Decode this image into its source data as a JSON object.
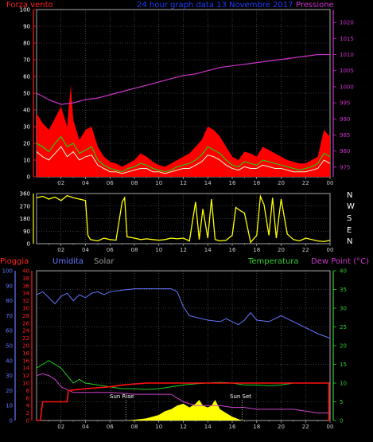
{
  "chart_data": [
    {
      "type": "line",
      "title": "24 hour graph data  13 Novembre 2017",
      "left_axis": {
        "label": "Forza vento",
        "ylim": [
          0,
          100
        ],
        "ticks": [
          "0",
          "10",
          "20",
          "30",
          "40",
          "50",
          "60",
          "70",
          "80",
          "90",
          "100"
        ],
        "color": "#ff2020"
      },
      "right_axis": {
        "label": "Pressione",
        "ylim": [
          972,
          1024
        ],
        "ticks": [
          "975",
          "980",
          "985",
          "990",
          "995",
          "1000",
          "1005",
          "1010",
          "1015",
          "1020"
        ],
        "color": "#cc33cc"
      },
      "x_ticks": [
        "02",
        "04",
        "06",
        "08",
        "10",
        "12",
        "14",
        "16",
        "18",
        "20",
        "22",
        "00"
      ],
      "x_range": [
        0,
        24
      ],
      "grid": true,
      "series": [
        {
          "name": "gust",
          "color": "#ff0000",
          "kind": "fill",
          "x": [
            0.0,
            0.5,
            1.0,
            1.5,
            2.0,
            2.5,
            2.8,
            3.0,
            3.5,
            4.0,
            4.5,
            5.0,
            5.5,
            6.0,
            6.5,
            7.0,
            7.5,
            8.0,
            8.5,
            9.0,
            9.5,
            10.0,
            10.5,
            11.0,
            11.5,
            12.0,
            12.5,
            13.0,
            13.5,
            14.0,
            14.5,
            15.0,
            15.5,
            16.0,
            16.5,
            17.0,
            17.5,
            18.0,
            18.5,
            19.0,
            19.5,
            20.0,
            20.5,
            21.0,
            21.5,
            22.0,
            22.5,
            23.0,
            23.5,
            24.0
          ],
          "values": [
            38,
            32,
            28,
            35,
            42,
            30,
            55,
            34,
            22,
            28,
            30,
            18,
            12,
            9,
            8,
            6,
            8,
            10,
            14,
            12,
            9,
            7,
            6,
            8,
            10,
            12,
            14,
            18,
            22,
            30,
            28,
            24,
            18,
            12,
            10,
            15,
            14,
            12,
            18,
            16,
            14,
            12,
            10,
            9,
            8,
            8,
            10,
            12,
            28,
            24
          ]
        },
        {
          "name": "speed",
          "color": "#00ee00",
          "kind": "line",
          "x": [
            0.0,
            0.5,
            1.0,
            1.5,
            2.0,
            2.5,
            3.0,
            3.5,
            4.0,
            4.5,
            5.0,
            5.5,
            6.0,
            6.5,
            7.0,
            7.5,
            8.0,
            8.5,
            9.0,
            9.5,
            10.0,
            10.5,
            11.0,
            11.5,
            12.0,
            12.5,
            13.0,
            13.5,
            14.0,
            14.5,
            15.0,
            15.5,
            16.0,
            16.5,
            17.0,
            17.5,
            18.0,
            18.5,
            19.0,
            19.5,
            20.0,
            20.5,
            21.0,
            21.5,
            22.0,
            22.5,
            23.0,
            23.5,
            24.0
          ],
          "values": [
            20,
            18,
            15,
            20,
            24,
            18,
            20,
            14,
            16,
            18,
            10,
            7,
            5,
            4,
            3,
            5,
            6,
            8,
            7,
            5,
            4,
            3,
            4,
            6,
            7,
            8,
            10,
            13,
            18,
            16,
            14,
            10,
            7,
            6,
            9,
            8,
            7,
            10,
            9,
            8,
            7,
            6,
            5,
            4,
            5,
            6,
            8,
            14,
            12
          ]
        },
        {
          "name": "average",
          "color": "#d8ffd8",
          "kind": "line",
          "x": [
            0.0,
            0.5,
            1.0,
            1.5,
            2.0,
            2.5,
            3.0,
            3.5,
            4.0,
            4.5,
            5.0,
            5.5,
            6.0,
            6.5,
            7.0,
            7.5,
            8.0,
            8.5,
            9.0,
            9.5,
            10.0,
            10.5,
            11.0,
            11.5,
            12.0,
            12.5,
            13.0,
            13.5,
            14.0,
            14.5,
            15.0,
            15.5,
            16.0,
            16.5,
            17.0,
            17.5,
            18.0,
            18.5,
            19.0,
            19.5,
            20.0,
            20.5,
            21.0,
            21.5,
            22.0,
            22.5,
            23.0,
            23.5,
            24.0
          ],
          "values": [
            15,
            12,
            10,
            14,
            18,
            12,
            15,
            10,
            12,
            13,
            7,
            5,
            3,
            3,
            2,
            3,
            4,
            5,
            5,
            3,
            3,
            2,
            3,
            4,
            5,
            5,
            7,
            9,
            13,
            12,
            10,
            7,
            5,
            4,
            6,
            5,
            5,
            7,
            6,
            5,
            5,
            4,
            3,
            3,
            3,
            4,
            5,
            10,
            8
          ]
        },
        {
          "name": "pressure",
          "color": "#cc33cc",
          "kind": "line",
          "axis": "right",
          "x": [
            0.0,
            1.0,
            2.0,
            3.0,
            4.0,
            5.0,
            6.0,
            7.0,
            8.0,
            9.0,
            10.0,
            11.0,
            12.0,
            13.0,
            14.0,
            15.0,
            16.0,
            17.0,
            18.0,
            19.0,
            20.0,
            21.0,
            22.0,
            23.0,
            24.0
          ],
          "values": [
            998.0,
            996.0,
            994.5,
            995.0,
            996.0,
            996.5,
            997.5,
            998.5,
            999.5,
            1000.5,
            1001.5,
            1002.5,
            1003.5,
            1004.0,
            1005.0,
            1006.0,
            1006.5,
            1007.0,
            1007.5,
            1008.0,
            1008.5,
            1009.0,
            1009.5,
            1010.0,
            1010.0
          ]
        }
      ]
    },
    {
      "type": "line",
      "left_axis": {
        "ylim": [
          0,
          360
        ],
        "ticks": [
          "0",
          "90",
          "180",
          "270",
          "360"
        ]
      },
      "right_labels": [
        "N",
        "W",
        "S",
        "E",
        "N"
      ],
      "x_ticks": [
        "02",
        "04",
        "06",
        "08",
        "10",
        "12",
        "14",
        "16",
        "18",
        "20",
        "22",
        "00"
      ],
      "x_range": [
        0,
        24
      ],
      "series": [
        {
          "name": "direction",
          "color": "#ffff00",
          "x": [
            0.0,
            0.5,
            1.0,
            1.5,
            2.0,
            2.5,
            3.0,
            3.5,
            4.0,
            4.2,
            4.4,
            5.0,
            5.5,
            6.0,
            6.5,
            7.0,
            7.2,
            7.4,
            8.0,
            8.5,
            9.0,
            9.5,
            10.0,
            10.5,
            11.0,
            11.5,
            12.0,
            12.5,
            13.0,
            13.3,
            13.6,
            14.0,
            14.3,
            14.6,
            15.0,
            15.5,
            16.0,
            16.3,
            16.6,
            17.0,
            17.5,
            18.0,
            18.3,
            18.6,
            19.0,
            19.3,
            19.6,
            20.0,
            20.5,
            21.0,
            21.5,
            22.0,
            22.5,
            23.0,
            23.5,
            24.0
          ],
          "values": [
            330,
            340,
            320,
            335,
            310,
            345,
            330,
            320,
            310,
            60,
            30,
            20,
            40,
            30,
            25,
            300,
            330,
            50,
            40,
            30,
            35,
            30,
            25,
            30,
            40,
            35,
            40,
            20,
            300,
            30,
            250,
            40,
            320,
            30,
            20,
            25,
            60,
            260,
            240,
            220,
            10,
            60,
            340,
            280,
            60,
            330,
            40,
            320,
            70,
            30,
            20,
            40,
            30,
            20,
            15,
            25
          ]
        }
      ]
    },
    {
      "type": "line",
      "labels": {
        "rain": "Pioggia",
        "humidity": "Umidita",
        "solar": "Solar",
        "temperature": "Temperatura",
        "dewpoint": "Dew Point (°C)"
      },
      "annotations": [
        "Sun Rise",
        "Sun Set"
      ],
      "sunrise_x": 7.3,
      "sunset_x": 16.8,
      "axis_humidity": {
        "ylim": [
          0,
          100
        ],
        "ticks": [
          "0",
          "10",
          "20",
          "30",
          "40",
          "50",
          "60",
          "70",
          "80",
          "90",
          "100"
        ],
        "color": "#6666ff"
      },
      "axis_rain": {
        "ylim": [
          0,
          40
        ],
        "ticks": [
          "0",
          "2",
          "4",
          "6",
          "8",
          "10",
          "12",
          "14",
          "16",
          "18",
          "20",
          "22",
          "24",
          "26",
          "28",
          "30",
          "32",
          "34",
          "36",
          "38",
          "40"
        ],
        "color": "#ff2020"
      },
      "axis_temperature": {
        "ylim": [
          0,
          40
        ],
        "ticks": [
          "0",
          "5",
          "10",
          "15",
          "20",
          "25",
          "30",
          "35",
          "40"
        ],
        "color": "#33cc33"
      },
      "x_ticks": [
        "02",
        "04",
        "06",
        "08",
        "10",
        "12",
        "14",
        "16",
        "18",
        "20",
        "22",
        "00"
      ],
      "x_range": [
        0,
        24
      ],
      "series": [
        {
          "name": "humidity",
          "color": "#6677ff",
          "axis": "humidity",
          "x": [
            0.0,
            0.5,
            1.0,
            1.5,
            2.0,
            2.5,
            3.0,
            3.5,
            4.0,
            4.5,
            5.0,
            5.5,
            6.0,
            7.0,
            8.0,
            9.0,
            10.0,
            11.0,
            11.5,
            12.0,
            12.5,
            13.0,
            14.0,
            15.0,
            15.5,
            16.0,
            16.5,
            17.0,
            17.5,
            18.0,
            19.0,
            20.0,
            20.5,
            21.0,
            22.0,
            23.0,
            24.0
          ],
          "values": [
            84,
            86,
            82,
            78,
            83,
            85,
            80,
            84,
            82,
            85,
            86,
            84,
            86,
            87,
            88,
            88,
            88,
            88,
            86,
            76,
            70,
            69,
            67,
            66,
            68,
            66,
            64,
            67,
            72,
            67,
            66,
            70,
            68,
            66,
            62,
            58,
            55
          ]
        },
        {
          "name": "temperature",
          "color": "#22cc22",
          "axis": "temperature",
          "x": [
            0.0,
            0.5,
            1.0,
            1.5,
            2.0,
            2.5,
            3.0,
            3.5,
            4.0,
            5.0,
            6.0,
            7.0,
            8.0,
            9.0,
            10.0,
            11.0,
            12.0,
            13.0,
            14.0,
            15.0,
            16.0,
            17.0,
            18.0,
            19.0,
            20.0,
            21.0,
            22.0,
            23.0,
            24.0
          ],
          "values": [
            14,
            15,
            16,
            15,
            14,
            12,
            10,
            11,
            10,
            9.5,
            9,
            8.5,
            8.5,
            8.3,
            8.5,
            9,
            9.5,
            9.8,
            10,
            10.2,
            10,
            9.5,
            9.5,
            9.3,
            9.5,
            10,
            10,
            10,
            10
          ]
        },
        {
          "name": "dewpoint",
          "color": "#cc44cc",
          "axis": "temperature",
          "x": [
            0.0,
            0.5,
            1.0,
            1.5,
            2.0,
            3.0,
            4.0,
            5.0,
            6.0,
            7.0,
            8.0,
            9.0,
            10.0,
            11.0,
            12.0,
            13.0,
            14.0,
            15.0,
            16.0,
            17.0,
            18.0,
            19.0,
            20.0,
            21.0,
            22.0,
            23.0,
            24.0
          ],
          "values": [
            12,
            12.5,
            12,
            11,
            9,
            7.5,
            7.5,
            7.5,
            7.5,
            7.3,
            7,
            7,
            7,
            7,
            5,
            4,
            4,
            4,
            3.5,
            3.5,
            3,
            3,
            3,
            3,
            2.5,
            2,
            2
          ]
        },
        {
          "name": "rain",
          "color": "#ff1010",
          "axis": "rain",
          "x": [
            0.0,
            0.3,
            0.5,
            2.0,
            2.5,
            2.6,
            4.0,
            6.0,
            7.0,
            9.0,
            11.0,
            12.0,
            14.0,
            16.0,
            18.0,
            20.0,
            22.0,
            23.9,
            23.9,
            24.0
          ],
          "values": [
            0,
            0,
            5,
            5,
            5,
            8,
            8.5,
            9,
            9.5,
            10,
            10,
            10,
            10,
            10,
            10,
            10,
            10,
            10,
            0,
            0
          ]
        },
        {
          "name": "solar",
          "color": "#ffff00",
          "kind": "fill",
          "axis": "temperature",
          "x": [
            0.0,
            7.3,
            8.0,
            9.0,
            10.0,
            10.5,
            11.0,
            11.5,
            12.0,
            12.5,
            13.0,
            13.3,
            13.6,
            14.0,
            14.3,
            14.6,
            15.0,
            15.5,
            16.0,
            16.8,
            24.0
          ],
          "values": [
            0,
            0,
            0.2,
            0.6,
            1.5,
            2.5,
            3,
            4,
            4.5,
            3.5,
            4.5,
            5.5,
            4,
            3.5,
            4,
            5.5,
            3,
            2,
            1,
            0,
            0
          ]
        }
      ]
    }
  ]
}
